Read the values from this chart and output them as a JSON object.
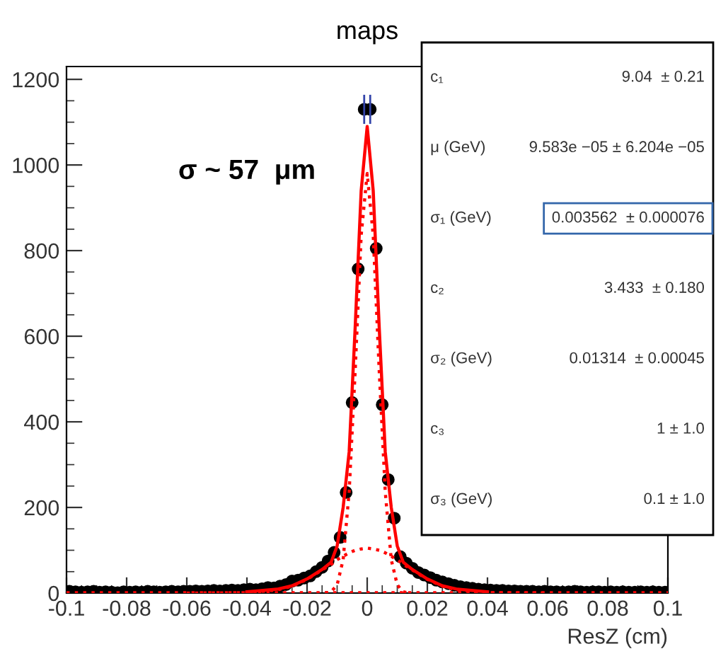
{
  "chart_data": {
    "type": "scatter",
    "title": "maps",
    "xlabel": "ResZ (cm)",
    "xlim": [
      -0.1,
      0.1
    ],
    "ylim": [
      0,
      1230
    ],
    "xticks": [
      -0.1,
      -0.08,
      -0.06,
      -0.04,
      -0.02,
      0,
      0.02,
      0.04,
      0.06,
      0.08,
      0.1
    ],
    "yticks": [
      0,
      200,
      400,
      600,
      800,
      1000,
      1200
    ],
    "grid": false,
    "series": [
      {
        "color": "#000000",
        "marker": "circle",
        "x": [
          -0.099,
          -0.097,
          -0.095,
          -0.093,
          -0.091,
          -0.089,
          -0.087,
          -0.085,
          -0.083,
          -0.081,
          -0.079,
          -0.077,
          -0.075,
          -0.073,
          -0.071,
          -0.069,
          -0.067,
          -0.065,
          -0.063,
          -0.061,
          -0.059,
          -0.057,
          -0.055,
          -0.053,
          -0.051,
          -0.049,
          -0.047,
          -0.045,
          -0.043,
          -0.041,
          -0.039,
          -0.037,
          -0.035,
          -0.033,
          -0.031,
          -0.029,
          -0.027,
          -0.025,
          -0.023,
          -0.021,
          -0.019,
          -0.017,
          -0.015,
          -0.013,
          -0.011,
          -0.009,
          -0.007,
          -0.005,
          -0.003,
          -0.001,
          0.001,
          0.003,
          0.005,
          0.007,
          0.009,
          0.011,
          0.013,
          0.015,
          0.017,
          0.019,
          0.021,
          0.023,
          0.025,
          0.027,
          0.029,
          0.031,
          0.033,
          0.035,
          0.037,
          0.039,
          0.041,
          0.043,
          0.045,
          0.047,
          0.049,
          0.051,
          0.053,
          0.055,
          0.057,
          0.059,
          0.061,
          0.063,
          0.065,
          0.067,
          0.069,
          0.071,
          0.073,
          0.075,
          0.077,
          0.079,
          0.081,
          0.083,
          0.085,
          0.087,
          0.089,
          0.091,
          0.093,
          0.095,
          0.097,
          0.099
        ],
        "values": [
          4,
          3,
          2,
          3,
          4,
          2,
          3,
          2,
          1,
          3,
          2,
          3,
          2,
          4,
          3,
          2,
          3,
          4,
          3,
          4,
          4,
          5,
          4,
          5,
          6,
          5,
          6,
          7,
          6,
          8,
          9,
          8,
          10,
          13,
          12,
          16,
          20,
          28,
          30,
          35,
          40,
          50,
          60,
          75,
          95,
          130,
          235,
          445,
          757,
          1130,
          1130,
          805,
          440,
          265,
          175,
          85,
          70,
          58,
          48,
          42,
          36,
          30,
          26,
          22,
          18,
          15,
          13,
          11,
          9,
          8,
          7,
          6,
          6,
          5,
          5,
          4,
          4,
          4,
          3,
          4,
          3,
          3,
          2,
          3,
          4,
          3,
          2,
          3,
          3,
          2,
          3,
          2,
          3,
          2,
          2,
          3,
          2,
          3,
          2,
          2
        ],
        "errors": [
          null,
          null,
          null,
          null,
          null,
          null,
          null,
          null,
          null,
          null,
          null,
          null,
          null,
          null,
          null,
          null,
          null,
          null,
          null,
          null,
          null,
          null,
          null,
          null,
          null,
          null,
          null,
          null,
          null,
          null,
          null,
          null,
          null,
          null,
          null,
          null,
          null,
          null,
          null,
          null,
          null,
          null,
          null,
          null,
          null,
          null,
          null,
          null,
          null,
          34,
          34,
          null,
          null,
          null,
          null,
          null,
          null,
          null,
          null,
          null,
          null,
          null,
          null,
          null,
          null,
          null,
          null,
          null,
          null,
          null,
          null,
          null,
          null,
          null,
          null,
          null,
          null,
          null,
          null,
          null,
          null,
          null,
          null,
          null,
          null,
          null,
          null,
          null,
          null,
          null,
          null,
          null,
          null,
          null,
          null,
          null,
          null,
          null,
          null,
          null
        ]
      },
      {
        "type": "line",
        "color": "#ff0000",
        "line_style": "solid",
        "x": [
          -0.04,
          -0.03,
          -0.025,
          -0.02,
          -0.015,
          -0.012,
          -0.01,
          -0.008,
          -0.006,
          -0.004,
          -0.002,
          0,
          0.002,
          0.004,
          0.006,
          0.008,
          0.01,
          0.012,
          0.015,
          0.02,
          0.025,
          0.03,
          0.04
        ],
        "values": [
          3,
          9,
          17,
          33,
          55,
          72,
          110,
          200,
          330,
          620,
          940,
          1090,
          940,
          620,
          330,
          200,
          110,
          72,
          55,
          33,
          17,
          9,
          3
        ]
      },
      {
        "type": "line",
        "color": "#ff0000",
        "line_style": "dotted",
        "x": [
          -0.014,
          -0.012,
          -0.01,
          -0.008,
          -0.006,
          -0.004,
          -0.002,
          0,
          0.002,
          0.004,
          0.006,
          0.008,
          0.01,
          0.012,
          0.014
        ],
        "values": [
          0,
          3,
          19,
          78,
          237,
          519,
          836,
          980,
          836,
          519,
          237,
          78,
          19,
          3,
          0
        ]
      },
      {
        "type": "line",
        "color": "#ff0000",
        "line_style": "dotted",
        "x": [
          -0.06,
          -0.04,
          -0.03,
          -0.025,
          -0.02,
          -0.015,
          -0.012,
          -0.01,
          -0.008,
          -0.006,
          -0.004,
          -0.002,
          0,
          0.002,
          0.004,
          0.006,
          0.008,
          0.01,
          0.012,
          0.015,
          0.02,
          0.025,
          0.03,
          0.04,
          0.06
        ],
        "values": [
          0,
          1,
          7,
          16,
          32,
          54,
          67,
          78,
          86,
          94,
          100,
          103,
          105,
          103,
          100,
          94,
          86,
          78,
          67,
          54,
          32,
          16,
          7,
          1,
          0
        ]
      },
      {
        "type": "line",
        "color": "#ff0000",
        "line_style": "dotted",
        "x": [
          -0.1,
          0.1
        ],
        "values": [
          1,
          1
        ]
      }
    ],
    "annotations": [
      "σ ~ 57  μm",
      "c₁",
      "9.04  ± 0.21",
      "μ (GeV)",
      "9.583e −05 ± 6.204e −05",
      "σ₁ (GeV)",
      "0.003562  ± 0.000076",
      "c₂",
      "3.433  ± 0.180",
      "σ₂ (GeV)",
      "0.01314  ± 0.00045",
      "c₃",
      "1 ± 1.0",
      "σ₃ (GeV)",
      "0.1 ± 1.0"
    ]
  }
}
